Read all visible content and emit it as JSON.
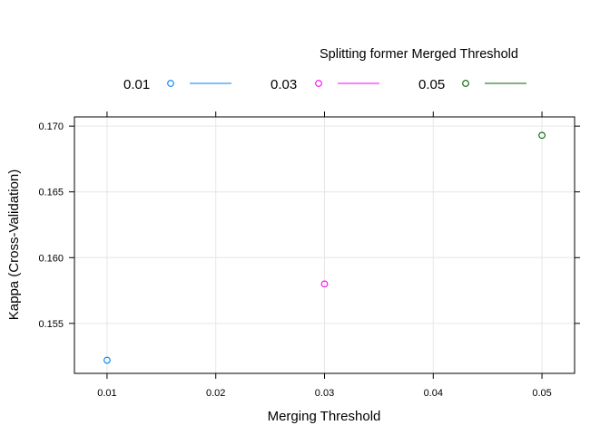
{
  "chart_data": {
    "type": "scatter",
    "xlabel": "Merging Threshold",
    "ylabel": "Kappa (Cross-Validation)",
    "legend_title": "Splitting former Merged Threshold",
    "legend_position": "top",
    "xlim": [
      0.007,
      0.053
    ],
    "ylim": [
      0.1512,
      0.1707
    ],
    "grid": true,
    "x_ticks": [
      0.01,
      0.02,
      0.03,
      0.04,
      0.05
    ],
    "x_tick_labels": [
      "0.01",
      "0.02",
      "0.03",
      "0.04",
      "0.05"
    ],
    "y_ticks": [
      0.155,
      0.16,
      0.165,
      0.17
    ],
    "y_tick_labels": [
      "0.155",
      "0.160",
      "0.165",
      "0.170"
    ],
    "series": [
      {
        "name": "0.01",
        "color": "#0080ff",
        "points": [
          {
            "x": 0.01,
            "y": 0.1522
          }
        ]
      },
      {
        "name": "0.03",
        "color": "#ff00ff",
        "points": [
          {
            "x": 0.03,
            "y": 0.158
          }
        ]
      },
      {
        "name": "0.05",
        "color": "#006400",
        "points": [
          {
            "x": 0.05,
            "y": 0.1693
          }
        ]
      }
    ]
  }
}
